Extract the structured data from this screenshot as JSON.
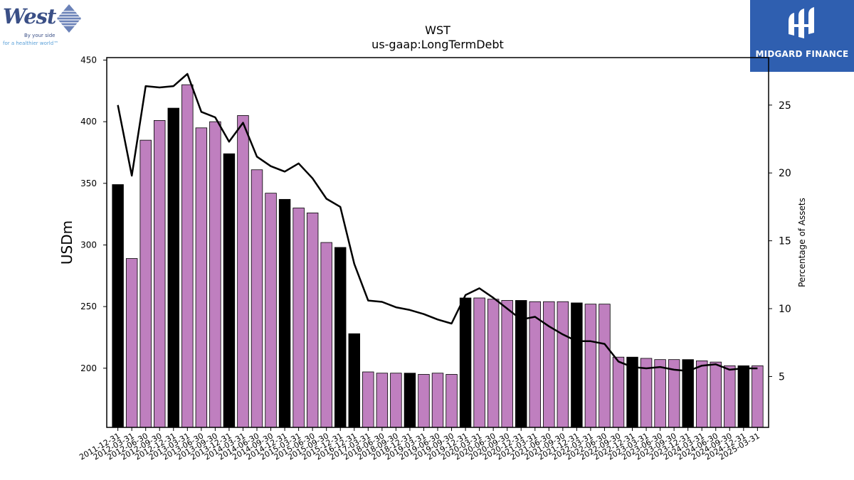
{
  "logos": {
    "left": {
      "name": "West",
      "tagline_line1": "By your side",
      "tagline_line2": "for a healthier world™"
    },
    "right": {
      "name": "MIDGARD FINANCE"
    }
  },
  "chart_data": {
    "type": "bar",
    "title": "WST",
    "subtitle": "us-gaap:LongTermDebt",
    "ylabel": "USDm",
    "y2label": "Percentage of Assets",
    "ylim": [
      152,
      452
    ],
    "y2lim": [
      1.25,
      28.5
    ],
    "yticks": [
      200,
      250,
      300,
      350,
      400,
      450
    ],
    "y2ticks": [
      5,
      10,
      15,
      20,
      25
    ],
    "categories": [
      "2011-12-31",
      "2012-03-31",
      "2012-06-30",
      "2012-09-30",
      "2012-12-31",
      "2013-03-31",
      "2013-06-30",
      "2013-09-30",
      "2013-12-31",
      "2014-03-31",
      "2014-06-30",
      "2014-09-30",
      "2014-12-31",
      "2015-03-31",
      "2015-06-30",
      "2015-09-30",
      "2015-12-31",
      "2016-12-31",
      "2017-03-31",
      "2018-06-30",
      "2018-09-30",
      "2018-12-31",
      "2019-03-31",
      "2019-06-30",
      "2019-09-30",
      "2019-12-31",
      "2020-03-31",
      "2020-06-30",
      "2020-09-30",
      "2020-12-31",
      "2021-03-31",
      "2021-06-30",
      "2021-09-30",
      "2021-12-31",
      "2022-03-31",
      "2022-06-30",
      "2022-09-30",
      "2022-12-31",
      "2023-03-31",
      "2023-06-30",
      "2023-09-30",
      "2023-12-31",
      "2024-03-31",
      "2024-06-30",
      "2024-09-30",
      "2024-12-31",
      "2025-03-31"
    ],
    "values": [
      349,
      289,
      385,
      401,
      411,
      430,
      395,
      400,
      374,
      405,
      361,
      342,
      337,
      330,
      326,
      302,
      298,
      228,
      197,
      196,
      196,
      196,
      195,
      196,
      195,
      257,
      257,
      256,
      255,
      255,
      254,
      254,
      254,
      253,
      252,
      252,
      209,
      209,
      208,
      207,
      207,
      207,
      206,
      205,
      202,
      202,
      202
    ],
    "fy_end_flags": [
      1,
      0,
      0,
      0,
      1,
      0,
      0,
      0,
      1,
      0,
      0,
      0,
      1,
      0,
      0,
      0,
      1,
      1,
      0,
      0,
      0,
      1,
      0,
      0,
      0,
      1,
      0,
      0,
      0,
      1,
      0,
      0,
      0,
      1,
      0,
      0,
      0,
      1,
      0,
      0,
      0,
      1,
      0,
      0,
      0,
      1,
      0
    ],
    "series": [
      {
        "name": "Percentage of Assets",
        "axis": "right",
        "values": [
          25.0,
          19.8,
          26.4,
          26.3,
          26.4,
          27.3,
          24.5,
          24.1,
          22.3,
          23.7,
          21.2,
          20.5,
          20.1,
          20.7,
          19.6,
          18.1,
          17.5,
          13.3,
          10.6,
          10.5,
          10.1,
          9.9,
          9.6,
          9.2,
          8.9,
          11.0,
          11.5,
          10.8,
          10.0,
          9.2,
          9.4,
          8.7,
          8.1,
          7.6,
          7.6,
          7.4,
          6.1,
          5.7,
          5.6,
          5.7,
          5.5,
          5.4,
          5.8,
          5.9,
          5.5,
          5.6,
          5.6
        ]
      }
    ],
    "colors": {
      "bar_quarter": "#bf7fbf",
      "bar_year_end": "#000000",
      "line": "#000000",
      "bar_edge": "#000000"
    },
    "grid": false,
    "legend": "none"
  }
}
